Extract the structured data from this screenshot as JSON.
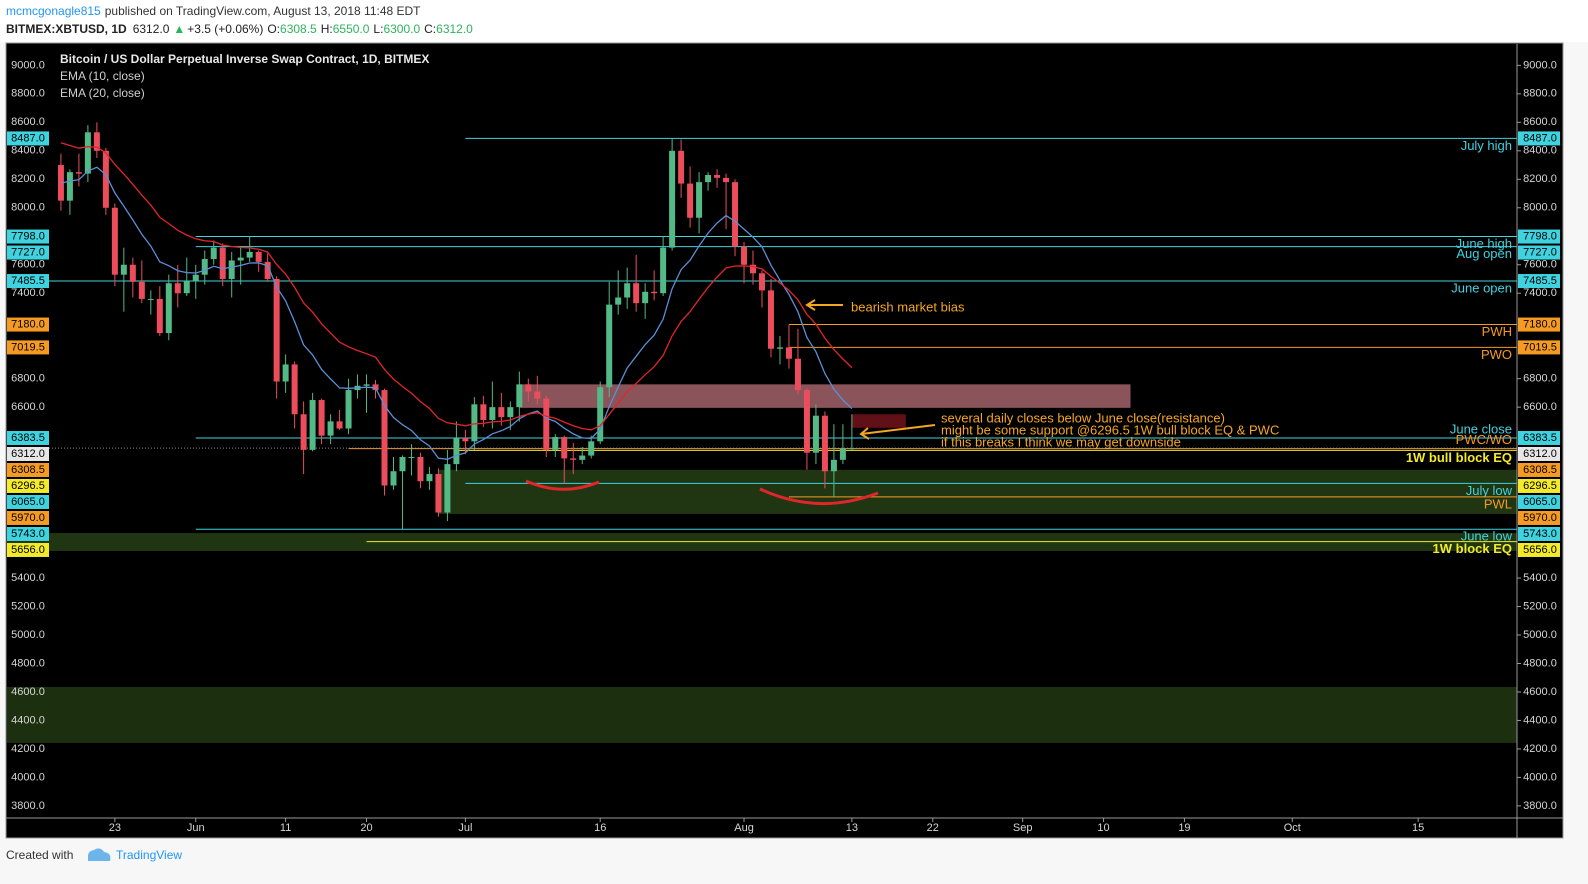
{
  "header": {
    "author": "mcmcgonagle815",
    "published": "published on TradingView.com, August 13, 2018 11:48 EDT",
    "symbol": "BITMEX:XBTUSD, 1D",
    "last": "6312.0",
    "change_arrow": "▲",
    "change": "+3.5 (+0.06%)",
    "ohlc": [
      {
        "key": "O:",
        "value": "6308.5"
      },
      {
        "key": "H:",
        "value": "6550.0"
      },
      {
        "key": "L:",
        "value": "6300.0"
      },
      {
        "key": "C:",
        "value": "6312.0"
      }
    ]
  },
  "annotations": {
    "bias": "bearish market bias",
    "notes": [
      "several daily closes below June close(resistance)",
      "might be some support @6296.5 1W bull block EQ & PWC",
      "if this breaks I think we may get downside"
    ]
  },
  "footer": {
    "created": "Created with",
    "brand": "TradingView"
  },
  "chart_data": {
    "type": "candlestick",
    "title": "Bitcoin / US Dollar Perpetual Inverse Swap Contract, 1D, BITMEX",
    "up_color": "#53b987",
    "down_color": "#eb4d5c",
    "xlim": [
      "2018-05-11",
      "2018-10-26"
    ],
    "ylim": [
      3715,
      9150
    ],
    "xticks": [
      {
        "value": "2018-05-23",
        "label": "23"
      },
      {
        "value": "2018-06-01",
        "label": "Jun"
      },
      {
        "value": "2018-06-11",
        "label": "11"
      },
      {
        "value": "2018-06-20",
        "label": "20"
      },
      {
        "value": "2018-07-01",
        "label": "Jul"
      },
      {
        "value": "2018-07-16",
        "label": "16"
      },
      {
        "value": "2018-08-01",
        "label": "Aug"
      },
      {
        "value": "2018-08-13",
        "label": "13"
      },
      {
        "value": "2018-08-22",
        "label": "22"
      },
      {
        "value": "2018-09-01",
        "label": "Sep"
      },
      {
        "value": "2018-09-10",
        "label": "10"
      },
      {
        "value": "2018-09-19",
        "label": "19"
      },
      {
        "value": "2018-10-01",
        "label": "Oct"
      },
      {
        "value": "2018-10-15",
        "label": "15"
      }
    ],
    "yticks": [
      {
        "value": 9000,
        "label": "9000.0"
      },
      {
        "value": 8800,
        "label": "8800.0"
      },
      {
        "value": 8600,
        "label": "8600.0"
      },
      {
        "value": 8400,
        "label": "8400.0"
      },
      {
        "value": 8200,
        "label": "8200.0"
      },
      {
        "value": 8000,
        "label": "8000.0"
      },
      {
        "value": 7600,
        "label": "7600.0"
      },
      {
        "value": 7400,
        "label": "7400.0"
      },
      {
        "value": 6800,
        "label": "6800.0"
      },
      {
        "value": 6600,
        "label": "6600.0"
      },
      {
        "value": 5400,
        "label": "5400.0"
      },
      {
        "value": 5200,
        "label": "5200.0"
      },
      {
        "value": 5000,
        "label": "5000.0"
      },
      {
        "value": 4800,
        "label": "4800.0"
      },
      {
        "value": 4600,
        "label": "4600.0"
      },
      {
        "value": 4400,
        "label": "4400.0"
      },
      {
        "value": 4200,
        "label": "4200.0"
      },
      {
        "value": 4000,
        "label": "4000.0"
      },
      {
        "value": 3800,
        "label": "3800.0"
      }
    ],
    "x": [
      "2018-05-17",
      "2018-05-18",
      "2018-05-19",
      "2018-05-20",
      "2018-05-21",
      "2018-05-22",
      "2018-05-23",
      "2018-05-24",
      "2018-05-25",
      "2018-05-26",
      "2018-05-27",
      "2018-05-28",
      "2018-05-29",
      "2018-05-30",
      "2018-05-31",
      "2018-06-01",
      "2018-06-02",
      "2018-06-03",
      "2018-06-04",
      "2018-06-05",
      "2018-06-06",
      "2018-06-07",
      "2018-06-08",
      "2018-06-09",
      "2018-06-10",
      "2018-06-11",
      "2018-06-12",
      "2018-06-13",
      "2018-06-14",
      "2018-06-15",
      "2018-06-16",
      "2018-06-17",
      "2018-06-18",
      "2018-06-19",
      "2018-06-20",
      "2018-06-21",
      "2018-06-22",
      "2018-06-23",
      "2018-06-24",
      "2018-06-25",
      "2018-06-26",
      "2018-06-27",
      "2018-06-28",
      "2018-06-29",
      "2018-06-30",
      "2018-07-01",
      "2018-07-02",
      "2018-07-03",
      "2018-07-04",
      "2018-07-05",
      "2018-07-06",
      "2018-07-07",
      "2018-07-08",
      "2018-07-09",
      "2018-07-10",
      "2018-07-11",
      "2018-07-12",
      "2018-07-13",
      "2018-07-14",
      "2018-07-15",
      "2018-07-16",
      "2018-07-17",
      "2018-07-18",
      "2018-07-19",
      "2018-07-20",
      "2018-07-21",
      "2018-07-22",
      "2018-07-23",
      "2018-07-24",
      "2018-07-25",
      "2018-07-26",
      "2018-07-27",
      "2018-07-28",
      "2018-07-29",
      "2018-07-30",
      "2018-07-31",
      "2018-08-01",
      "2018-08-02",
      "2018-08-03",
      "2018-08-04",
      "2018-08-05",
      "2018-08-06",
      "2018-08-07",
      "2018-08-08",
      "2018-08-09",
      "2018-08-10",
      "2018-08-11",
      "2018-08-12",
      "2018-08-13"
    ],
    "open": [
      8300,
      8050,
      8250,
      8240,
      8530,
      8400,
      8000,
      7530,
      7600,
      7480,
      7360,
      7360,
      7120,
      7470,
      7400,
      7485.5,
      7530,
      7640,
      7720,
      7500,
      7630,
      7650,
      7690,
      7620,
      7500,
      6780,
      6900,
      6550,
      6300,
      6650,
      6400,
      6500,
      6450,
      6720,
      6750,
      6760,
      6720,
      6050,
      6150,
      6250,
      6250,
      6080,
      6130,
      5860,
      6200,
      6383.5,
      6360,
      6620,
      6510,
      6600,
      6530,
      6600,
      6760,
      6710,
      6660,
      6300,
      6390,
      6240,
      6230,
      6260,
      6360,
      6740,
      7320,
      7370,
      7470,
      7330,
      7410,
      7400,
      7720,
      8400,
      8170,
      7930,
      8180,
      8230,
      8210,
      8180,
      7727,
      7600,
      7540,
      7420,
      7010,
      7019.5,
      6940,
      6720,
      6280,
      6540,
      6150,
      6230,
      6308.5
    ],
    "high": [
      8380,
      8270,
      8380,
      8580,
      8600,
      8420,
      8030,
      7720,
      7650,
      7630,
      7420,
      7450,
      7530,
      7600,
      7650,
      7600,
      7700,
      7770,
      7750,
      7690,
      7730,
      7798,
      7700,
      7680,
      7520,
      6970,
      6920,
      6640,
      6700,
      6660,
      6550,
      6580,
      6800,
      6830,
      6830,
      6790,
      6730,
      6250,
      6260,
      6340,
      6280,
      6180,
      6170,
      6300,
      6500,
      6440,
      6670,
      6680,
      6780,
      6700,
      6640,
      6850,
      6800,
      6820,
      6680,
      6410,
      6400,
      6350,
      6320,
      6400,
      6780,
      7480,
      7560,
      7580,
      7670,
      7470,
      7560,
      7800,
      8487,
      8480,
      8290,
      8250,
      8250,
      8270,
      8240,
      8200,
      7760,
      7700,
      7560,
      7500,
      7100,
      7180,
      7150,
      6730,
      6620,
      6570,
      6480,
      6480,
      6550
    ],
    "low": [
      7980,
      7950,
      8150,
      8180,
      8350,
      7950,
      7450,
      7270,
      7370,
      7330,
      7250,
      7100,
      7070,
      7300,
      7380,
      7360,
      7460,
      7600,
      7450,
      7370,
      7460,
      7620,
      7550,
      7480,
      6660,
      6700,
      6450,
      6130,
      6290,
      6340,
      6340,
      6440,
      6410,
      6660,
      6560,
      6660,
      5980,
      6020,
      5743,
      6120,
      6030,
      6020,
      5830,
      5800,
      6150,
      6270,
      6300,
      6460,
      6450,
      6470,
      6440,
      6500,
      6640,
      6620,
      6250,
      6250,
      6065,
      6130,
      6200,
      6240,
      6340,
      6670,
      7250,
      7290,
      7270,
      7220,
      7350,
      7380,
      7700,
      8070,
      7860,
      7820,
      8120,
      8140,
      7850,
      7660,
      7470,
      7460,
      7300,
      6950,
      6900,
      6870,
      6690,
      6160,
      6200,
      6030,
      5970,
      6200,
      6300
    ],
    "close": [
      8050,
      8250,
      8240,
      8530,
      8400,
      8000,
      7530,
      7600,
      7480,
      7360,
      7360,
      7120,
      7470,
      7400,
      7485.5,
      7530,
      7640,
      7720,
      7500,
      7630,
      7650,
      7690,
      7620,
      7500,
      6780,
      6900,
      6550,
      6300,
      6650,
      6400,
      6500,
      6450,
      6720,
      6750,
      6760,
      6720,
      6050,
      6150,
      6250,
      6250,
      6080,
      6130,
      5860,
      6200,
      6383.5,
      6360,
      6620,
      6510,
      6600,
      6530,
      6600,
      6760,
      6710,
      6660,
      6300,
      6390,
      6240,
      6230,
      6260,
      6360,
      6740,
      7320,
      7370,
      7470,
      7330,
      7410,
      7400,
      7720,
      8400,
      8170,
      7930,
      8180,
      8230,
      8210,
      8180,
      7727,
      7600,
      7540,
      7420,
      7010,
      7019.5,
      6940,
      6720,
      6280,
      6540,
      6150,
      6230,
      6308.5,
      6312
    ],
    "series": [
      {
        "name": "EMA (10, close)",
        "color": "#5b8fd6",
        "values": [
          8173,
          8187,
          8197,
          8258,
          8284,
          8232,
          8104,
          8012,
          7915,
          7814,
          7731,
          7620,
          7593,
          7558,
          7545,
          7542,
          7560,
          7589,
          7573,
          7583,
          7595,
          7612,
          7613,
          7593,
          7445,
          7346,
          7201,
          7037,
          6967,
          6864,
          6798,
          6735,
          6732,
          6735,
          6740,
          6736,
          6611,
          6527,
          6477,
          6436,
          6371,
          6327,
          6242,
          6234,
          6261,
          6279,
          6341,
          6372,
          6413,
          6434,
          6464,
          6518,
          6553,
          6572,
          6523,
          6499,
          6452,
          6412,
          6384,
          6380,
          6445,
          6604,
          6743,
          6875,
          6958,
          7040,
          7105,
          7217,
          7432,
          7566,
          7632,
          7732,
          7823,
          7893,
          7945,
          7905,
          7850,
          7794,
          7726,
          7596,
          7491,
          7391,
          7269,
          7089,
          6989,
          6836,
          6726,
          6650,
          6589
        ]
      },
      {
        "name": "EMA (20, close)",
        "color": "#e0262b",
        "values": [
          8457,
          8437,
          8418,
          8429,
          8426,
          8385,
          8304,
          8237,
          8165,
          8088,
          8019,
          7933,
          7889,
          7842,
          7808,
          7782,
          7768,
          7763,
          7738,
          7728,
          7721,
          7718,
          7709,
          7689,
          7602,
          7535,
          7441,
          7332,
          7267,
          7185,
          7120,
          7056,
          7024,
          6998,
          6975,
          6951,
          6865,
          6797,
          6745,
          6698,
          6639,
          6591,
          6521,
          6490,
          6480,
          6469,
          6483,
          6486,
          6497,
          6500,
          6510,
          6534,
          6551,
          6561,
          6536,
          6522,
          6495,
          6470,
          6450,
          6441,
          6469,
          6550,
          6628,
          6708,
          6767,
          6828,
          6883,
          6963,
          7100,
          7202,
          7271,
          7358,
          7441,
          7514,
          7577,
          7591,
          7592,
          7587,
          7571,
          7518,
          7471,
          7420,
          7353,
          7251,
          7183,
          7085,
          7004,
          6938,
          6878
        ]
      }
    ],
    "last_price": {
      "value": 6312,
      "label": "6312.0",
      "color": "#e6e6e6"
    },
    "levels": [
      {
        "name": "July high",
        "value": 8487,
        "value_label": "8487.0",
        "color": "#3fd3e0",
        "from": "2018-07-01",
        "label_side": "below"
      },
      {
        "name": "June high",
        "value": 7798,
        "value_label": "7798.0",
        "color": "#3fd3e0",
        "from": "2018-06-01",
        "label_side": "below"
      },
      {
        "name": "Aug open",
        "value": 7727,
        "value_label": "7727.0",
        "color": "#3fd3e0",
        "from": "2018-06-01",
        "label_side": "below"
      },
      {
        "name": "June open",
        "value": 7485.5,
        "value_label": "7485.5",
        "color": "#3fd3e0",
        "from": "2018-05-11",
        "label_side": "below"
      },
      {
        "name": "PWH",
        "value": 7180,
        "value_label": "7180.0",
        "color": "#f59a23",
        "from": "2018-08-06",
        "label_side": "below"
      },
      {
        "name": "PWO",
        "value": 7019.5,
        "value_label": "7019.5",
        "color": "#f59a23",
        "from": "2018-08-06",
        "label_side": "below"
      },
      {
        "name": "June close",
        "value": 6383.5,
        "value_label": "6383.5",
        "color": "#3fd3e0",
        "from": "2018-06-01",
        "label_side": "above"
      },
      {
        "name": "PWC/WO",
        "value": 6308.5,
        "value_label": "6308.5",
        "color": "#f59a23",
        "from": "2018-06-18",
        "label_side": "above"
      },
      {
        "name": "1W bull block EQ",
        "value": 6296.5,
        "value_label": "6296.5",
        "color": "#f2ea2a",
        "from": "2018-06-30",
        "label_side": "below",
        "bold": true
      },
      {
        "name": "July low",
        "value": 6065,
        "value_label": "6065.0",
        "color": "#3fd3e0",
        "from": "2018-07-01",
        "label_side": "below"
      },
      {
        "name": "PWL",
        "value": 5970,
        "value_label": "5970.0",
        "color": "#f59a23",
        "from": "2018-08-06",
        "label_side": "below"
      },
      {
        "name": "June low",
        "value": 5743,
        "value_label": "5743.0",
        "color": "#3fd3e0",
        "from": "2018-06-01",
        "label_side": "below"
      },
      {
        "name": "1W block EQ",
        "value": 5656,
        "value_label": "5656.0",
        "color": "#f2ea2a",
        "from": "2018-06-20",
        "label_side": "below",
        "bold": true
      }
    ],
    "zones": [
      {
        "from": "2018-07-07",
        "to": "2018-09-13",
        "top": 6760,
        "bottom": 6595,
        "color": "rgba(232,140,150,0.6)"
      },
      {
        "from": "2018-08-13",
        "to": "2018-08-19",
        "top": 6550,
        "bottom": 6455,
        "color": "rgba(150,25,35,0.65)"
      },
      {
        "from": "2018-06-28",
        "to": "2018-10-26",
        "top": 6160,
        "bottom": 5850,
        "color": "rgba(70,120,40,0.45)"
      },
      {
        "from": "2018-05-11",
        "to": "2018-10-26",
        "top": 5716,
        "bottom": 5590,
        "color": "rgba(70,120,40,0.45)"
      },
      {
        "from": "2018-05-11",
        "to": "2018-10-26",
        "top": 4635,
        "bottom": 4242,
        "color": "rgba(70,120,40,0.4)"
      }
    ]
  }
}
